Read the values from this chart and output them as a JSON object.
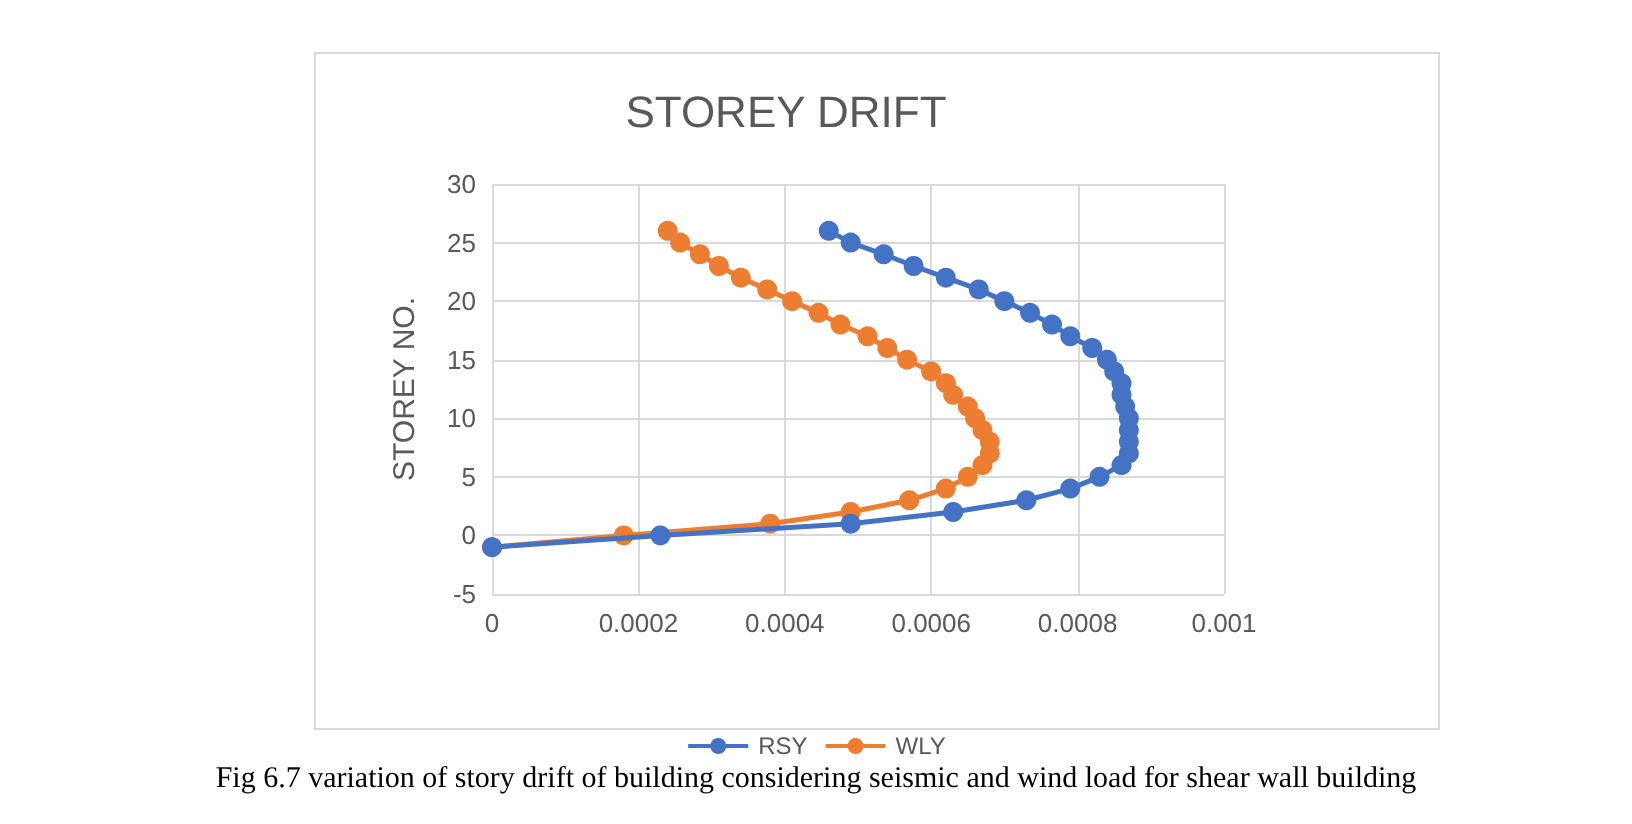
{
  "chart_data": {
    "type": "line",
    "title": "STOREY DRIFT",
    "ylabel": "STOREY NO.",
    "annotations": [
      "Fig 6.7 variation of story drift of building considering seismic and wind load for shear wall building"
    ],
    "series": [
      {
        "name": "RSY",
        "color": "#4472c4",
        "x": [
          0,
          0.00023,
          0.00049,
          0.00063,
          0.00073,
          0.00079,
          0.00083,
          0.00086,
          0.00087,
          0.00087,
          0.00087,
          0.00087,
          0.000865,
          0.00086,
          0.00086,
          0.00085,
          0.00084,
          0.00082,
          0.00079,
          0.000765,
          0.000735,
          0.0007,
          0.000665,
          0.00062,
          0.000576,
          0.000535,
          0.00049,
          0.00046
        ],
        "values": [
          -1,
          0,
          1,
          2,
          3,
          4,
          5,
          6,
          7,
          8,
          9,
          10,
          11,
          12,
          13,
          14,
          15,
          16,
          17,
          18,
          19,
          20,
          21,
          22,
          23,
          24,
          25,
          26
        ]
      },
      {
        "name": "WLY",
        "color": "#ed7d31",
        "x": [
          0,
          0.00018,
          0.00038,
          0.00049,
          0.00057,
          0.00062,
          0.00065,
          0.00067,
          0.00068,
          0.00068,
          0.00067,
          0.00066,
          0.00065,
          0.00063,
          0.00062,
          0.0006,
          0.000567,
          0.00054,
          0.000513,
          0.000476,
          0.000446,
          0.00041,
          0.000376,
          0.00034,
          0.00031,
          0.000284,
          0.000257,
          0.00024
        ],
        "values": [
          -1,
          0,
          1,
          2,
          3,
          4,
          5,
          6,
          7,
          8,
          9,
          10,
          11,
          12,
          13,
          14,
          15,
          16,
          17,
          18,
          19,
          20,
          21,
          22,
          23,
          24,
          25,
          26
        ]
      }
    ],
    "xlim": [
      0,
      0.001
    ],
    "xticks": [
      0,
      0.0002,
      0.0004,
      0.0006,
      0.0008,
      0.001
    ],
    "ylim": [
      -5,
      30
    ],
    "yticks": [
      -5,
      0,
      5,
      10,
      15,
      20,
      25,
      30
    ],
    "grid": true,
    "legend": "bottom",
    "marker": "circle",
    "line_style": "solid"
  }
}
